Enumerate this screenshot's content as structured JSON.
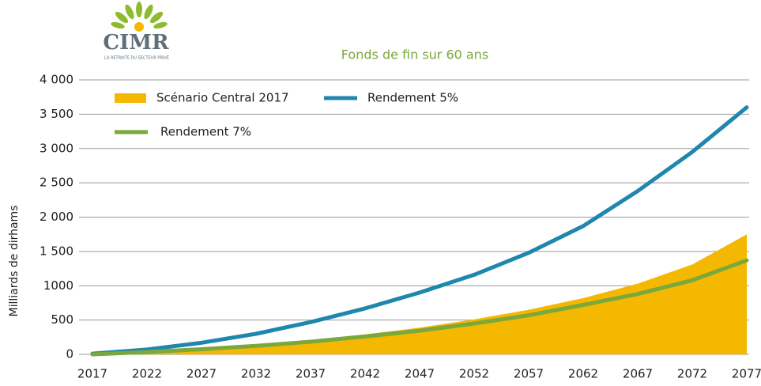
{
  "logo": {
    "name": "CIMR",
    "tagline": "LA RETRAITE DU SECTEUR PRIVÉ"
  },
  "chart_data": {
    "type": "line",
    "title": "Fonds de fin sur 60 ans",
    "y_label": "Milliards de dirhams",
    "x": [
      2017,
      2022,
      2027,
      2032,
      2037,
      2042,
      2047,
      2052,
      2057,
      2062,
      2067,
      2072,
      2077
    ],
    "xlim": [
      2017,
      2077
    ],
    "xticks": [
      2017,
      2022,
      2027,
      2032,
      2037,
      2042,
      2047,
      2052,
      2057,
      2062,
      2067,
      2072,
      2077
    ],
    "ylim": [
      0,
      4000
    ],
    "yticks": [
      0,
      500,
      1000,
      {
        "value": 1500,
        "label": "1 500"
      },
      {
        "value": 2000,
        "label": "2 000"
      },
      {
        "value": 2500,
        "label": "2 500"
      },
      {
        "value": 3000,
        "label": "3 000"
      },
      {
        "value": 3500,
        "label": "3 500"
      },
      {
        "value": 4000,
        "label": "4 000"
      }
    ],
    "grid": true,
    "series": [
      {
        "name": "Scénario Central 2017",
        "kind": "area",
        "color": "#f5b800",
        "values": [
          20,
          45,
          85,
          140,
          210,
          290,
          390,
          510,
          650,
          820,
          1030,
          1310,
          1750
        ]
      },
      {
        "name": "Rendement 5%",
        "kind": "line",
        "color": "#1f86ad",
        "values": [
          10,
          70,
          170,
          300,
          470,
          670,
          900,
          1160,
          1480,
          1870,
          2380,
          2950,
          3600
        ]
      },
      {
        "name": "Rendement 7%",
        "kind": "line",
        "color": "#7aa83a",
        "values": [
          0,
          35,
          75,
          125,
          185,
          260,
          345,
          450,
          570,
          720,
          880,
          1080,
          1370
        ]
      }
    ]
  }
}
